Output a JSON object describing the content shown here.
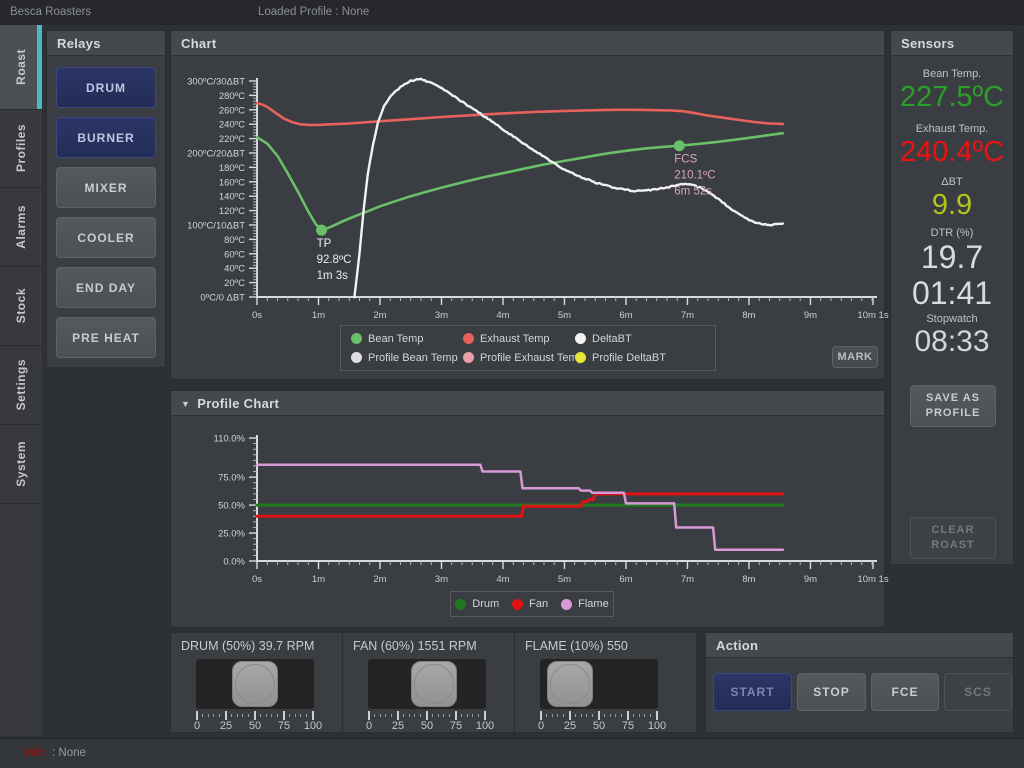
{
  "app": {
    "title": "Besca Roasters",
    "loaded_profile_label": "Loaded Profile : None",
    "status": {
      "label": "Info",
      "separator": ":",
      "value": "None"
    }
  },
  "sidebar": {
    "tabs": [
      {
        "label": "Roast",
        "active": true
      },
      {
        "label": "Profiles",
        "active": false
      },
      {
        "label": "Alarms",
        "active": false
      },
      {
        "label": "Stock",
        "active": false
      },
      {
        "label": "Settings",
        "active": false
      },
      {
        "label": "System",
        "active": false
      }
    ]
  },
  "relays": {
    "title": "Relays",
    "buttons": [
      {
        "label": "DRUM",
        "state": "on"
      },
      {
        "label": "BURNER",
        "state": "on"
      },
      {
        "label": "MIXER",
        "state": "off"
      },
      {
        "label": "COOLER",
        "state": "off"
      },
      {
        "label": "END DAY",
        "state": "off"
      },
      {
        "label": "PRE HEAT",
        "state": "off"
      }
    ]
  },
  "chart_panel": {
    "title": "Chart",
    "mark_button": "MARK",
    "legend": [
      {
        "label": "Bean Temp",
        "color": "#6abf69"
      },
      {
        "label": "Exhaust Temp",
        "color": "#e8625c"
      },
      {
        "label": "DeltaBT",
        "color": "#f2f2f2"
      },
      {
        "label": "Profile Bean Temp",
        "color": "#dedede"
      },
      {
        "label": "Profile Exhaust Temp",
        "color": "#e5a0a8"
      },
      {
        "label": "Profile DeltaBT",
        "color": "#e8e437"
      }
    ]
  },
  "profile_panel": {
    "title": "Profile Chart",
    "collapse_icon": "▼",
    "legend": [
      {
        "label": "Drum",
        "color": "#1f7a1f"
      },
      {
        "label": "Fan",
        "color": "#e01212"
      },
      {
        "label": "Flame",
        "color": "#d79ad7"
      }
    ]
  },
  "sensors": {
    "title": "Sensors",
    "readings": [
      {
        "label": "Bean Temp.",
        "value": "227.5ºC",
        "color": "#2aa02a"
      },
      {
        "label": "Exhaust Temp.",
        "value": "240.4ºC",
        "color": "#ef1111"
      },
      {
        "label": "ΔBT",
        "value": "9.9",
        "color": "#b3c41c"
      }
    ],
    "dtr": {
      "label": "DTR (%)",
      "value": "19.7",
      "time": "01:41"
    },
    "stopwatch": {
      "label": "Stopwatch",
      "value": "08:33"
    },
    "save_button": "SAVE AS PROFILE",
    "clear_button": "CLEAR ROAST"
  },
  "controls": {
    "drum": {
      "label": "DRUM (50%) 39.7 RPM",
      "percent": 50,
      "scale": [
        "0",
        "25",
        "50",
        "75",
        "100"
      ]
    },
    "fan": {
      "label": "FAN (60%) 1551 RPM",
      "percent": 60,
      "scale": [
        "0",
        "25",
        "50",
        "75",
        "100"
      ]
    },
    "flame": {
      "label": "FLAME (10%) 550",
      "percent": 10,
      "scale": [
        "0",
        "25",
        "50",
        "75",
        "100"
      ]
    }
  },
  "action": {
    "title": "Action",
    "buttons": [
      {
        "label": "START",
        "style": "primary-active"
      },
      {
        "label": "STOP",
        "style": "normal"
      },
      {
        "label": "FCE",
        "style": "normal"
      },
      {
        "label": "SCS",
        "style": "disabled"
      }
    ]
  },
  "chart_data": [
    {
      "id": "main-chart",
      "type": "line",
      "title": "Chart",
      "xlabel": "",
      "ylabel": "",
      "x_range": [
        0,
        601
      ],
      "y_range": [
        0,
        300
      ],
      "x_minor_step": 10,
      "y_minor_step": 4,
      "x_ticks": [
        {
          "x": 0,
          "label": "0s"
        },
        {
          "x": 60,
          "label": "1m"
        },
        {
          "x": 120,
          "label": "2m"
        },
        {
          "x": 180,
          "label": "3m"
        },
        {
          "x": 240,
          "label": "4m"
        },
        {
          "x": 300,
          "label": "5m"
        },
        {
          "x": 360,
          "label": "6m"
        },
        {
          "x": 420,
          "label": "7m"
        },
        {
          "x": 480,
          "label": "8m"
        },
        {
          "x": 540,
          "label": "9m"
        },
        {
          "x": 601,
          "label": "10m 1s"
        }
      ],
      "y_ticks": [
        {
          "y": 0,
          "label": "0ºC/0 ΔBT"
        },
        {
          "y": 20,
          "label": "20ºC"
        },
        {
          "y": 40,
          "label": "40ºC"
        },
        {
          "y": 60,
          "label": "60ºC"
        },
        {
          "y": 80,
          "label": "80ºC"
        },
        {
          "y": 100,
          "label": "100ºC/10ΔBT"
        },
        {
          "y": 120,
          "label": "120ºC"
        },
        {
          "y": 140,
          "label": "140ºC"
        },
        {
          "y": 160,
          "label": "160ºC"
        },
        {
          "y": 180,
          "label": "180ºC"
        },
        {
          "y": 200,
          "label": "200ºC/20ΔBT"
        },
        {
          "y": 220,
          "label": "220ºC"
        },
        {
          "y": 240,
          "label": "240ºC"
        },
        {
          "y": 260,
          "label": "260ºC"
        },
        {
          "y": 280,
          "label": "280ºC"
        },
        {
          "y": 300,
          "label": "300ºC/30ΔBT"
        }
      ],
      "series": [
        {
          "name": "Bean Temp",
          "color": "#6abf69",
          "width": 2.6,
          "points": [
            [
              0,
              222
            ],
            [
              10,
              213
            ],
            [
              20,
              196
            ],
            [
              30,
              172
            ],
            [
              40,
              146
            ],
            [
              50,
              119
            ],
            [
              57,
              102
            ],
            [
              63,
              92.8
            ],
            [
              68,
              95
            ],
            [
              75,
              99.5
            ],
            [
              85,
              106
            ],
            [
              95,
              112
            ],
            [
              108,
              119
            ],
            [
              120,
              126
            ],
            [
              135,
              133
            ],
            [
              150,
              140
            ],
            [
              165,
              146
            ],
            [
              180,
              152
            ],
            [
              200,
              159
            ],
            [
              220,
              166
            ],
            [
              240,
              172
            ],
            [
              260,
              178
            ],
            [
              280,
              184
            ],
            [
              300,
              189
            ],
            [
              320,
              194
            ],
            [
              340,
              199
            ],
            [
              360,
              203
            ],
            [
              380,
              206.5
            ],
            [
              396,
              208.5
            ],
            [
              412,
              210.1
            ],
            [
              430,
              212.5
            ],
            [
              450,
              215.5
            ],
            [
              475,
              220
            ],
            [
              495,
              224
            ],
            [
              513,
              227.5
            ]
          ]
        },
        {
          "name": "Exhaust Temp",
          "color": "#e8625c",
          "width": 2.6,
          "points": [
            [
              0,
              269
            ],
            [
              5,
              267.5
            ],
            [
              10,
              264
            ],
            [
              18,
              256
            ],
            [
              26,
              248
            ],
            [
              34,
              243
            ],
            [
              42,
              240
            ],
            [
              50,
              239
            ],
            [
              60,
              239
            ],
            [
              75,
              240
            ],
            [
              90,
              241
            ],
            [
              110,
              243
            ],
            [
              130,
              245
            ],
            [
              155,
              247.5
            ],
            [
              180,
              250
            ],
            [
              210,
              252.5
            ],
            [
              240,
              255
            ],
            [
              270,
              257
            ],
            [
              300,
              258.5
            ],
            [
              330,
              259.5
            ],
            [
              350,
              260
            ],
            [
              370,
              260
            ],
            [
              390,
              259.5
            ],
            [
              405,
              259
            ],
            [
              415,
              258
            ],
            [
              425,
              256
            ],
            [
              440,
              252
            ],
            [
              455,
              249
            ],
            [
              470,
              246
            ],
            [
              485,
              243
            ],
            [
              500,
              241
            ],
            [
              513,
              240.4
            ]
          ]
        },
        {
          "name": "DeltaBT",
          "color": "#f2f2f2",
          "width": 2.4,
          "jitter": true,
          "points": [
            [
              95,
              0
            ],
            [
              100,
              60
            ],
            [
              104,
              120
            ],
            [
              108,
              170
            ],
            [
              113,
              210
            ],
            [
              118,
              242
            ],
            [
              124,
              266
            ],
            [
              130,
              278
            ],
            [
              140,
              292
            ],
            [
              150,
              300
            ],
            [
              158,
              303
            ],
            [
              165,
              300
            ],
            [
              175,
              294
            ],
            [
              185,
              286
            ],
            [
              195,
              276
            ],
            [
              210,
              262
            ],
            [
              225,
              248
            ],
            [
              240,
              233
            ],
            [
              255,
              218
            ],
            [
              270,
              204
            ],
            [
              285,
              190
            ],
            [
              300,
              177
            ],
            [
              315,
              167
            ],
            [
              330,
              159
            ],
            [
              345,
              153
            ],
            [
              360,
              149
            ],
            [
              370,
              147
            ],
            [
              380,
              148
            ],
            [
              390,
              150
            ],
            [
              400,
              152
            ],
            [
              408,
              155
            ],
            [
              416,
              157
            ],
            [
              424,
              156
            ],
            [
              432,
              152
            ],
            [
              440,
              146
            ],
            [
              450,
              136
            ],
            [
              460,
              125
            ],
            [
              470,
              115
            ],
            [
              480,
              107
            ],
            [
              490,
              102
            ],
            [
              500,
              100
            ],
            [
              508,
              101
            ],
            [
              513,
              102
            ]
          ]
        }
      ],
      "markers": [
        {
          "name": "TP",
          "lines": [
            "TP",
            "92.8ºC",
            "1m 3s"
          ],
          "x": 63,
          "y": 92.8,
          "dot_color": "#6abf69",
          "text_color": "#ececec"
        },
        {
          "name": "FCS",
          "lines": [
            "FCS",
            "210.1ºC",
            "6m 52s"
          ],
          "x": 412,
          "y": 210.1,
          "dot_color": "#6abf69",
          "text_color": "#d9a4bd"
        }
      ]
    },
    {
      "id": "profile-chart",
      "type": "step-line",
      "title": "Profile Chart",
      "xlabel": "",
      "ylabel": "",
      "x_range": [
        0,
        601
      ],
      "y_range": [
        0,
        110
      ],
      "x_minor_step": 10,
      "y_minor_step": 5,
      "x_ticks": [
        {
          "x": 0,
          "label": "0s"
        },
        {
          "x": 60,
          "label": "1m"
        },
        {
          "x": 120,
          "label": "2m"
        },
        {
          "x": 180,
          "label": "3m"
        },
        {
          "x": 240,
          "label": "4m"
        },
        {
          "x": 300,
          "label": "5m"
        },
        {
          "x": 360,
          "label": "6m"
        },
        {
          "x": 420,
          "label": "7m"
        },
        {
          "x": 480,
          "label": "8m"
        },
        {
          "x": 540,
          "label": "9m"
        },
        {
          "x": 601,
          "label": "10m 1s"
        }
      ],
      "y_ticks": [
        {
          "y": 0,
          "label": "0.0%"
        },
        {
          "y": 25,
          "label": "25.0%"
        },
        {
          "y": 50,
          "label": "50.0%"
        },
        {
          "y": 75,
          "label": "75.0%"
        },
        {
          "y": 110,
          "label": "110.0%"
        }
      ],
      "series": [
        {
          "name": "Drum",
          "color": "#1f7a1f",
          "width": 3,
          "points": [
            [
              0,
              50
            ],
            [
              513,
              50
            ]
          ]
        },
        {
          "name": "Fan",
          "color": "#e01212",
          "width": 3,
          "points": [
            [
              0,
              40
            ],
            [
              258,
              40
            ],
            [
              260,
              49
            ],
            [
              316,
              49
            ],
            [
              318,
              53
            ],
            [
              322,
              53
            ],
            [
              324,
              55
            ],
            [
              328,
              55
            ],
            [
              330,
              60
            ],
            [
              513,
              60
            ]
          ]
        },
        {
          "name": "Flame",
          "color": "#d79ad7",
          "width": 2.5,
          "points": [
            [
              0,
              86
            ],
            [
              218,
              86
            ],
            [
              220,
              80
            ],
            [
              257,
              80
            ],
            [
              259,
              65
            ],
            [
              314,
              65
            ],
            [
              316,
              63
            ],
            [
              325,
              63
            ],
            [
              327,
              61
            ],
            [
              358,
              61
            ],
            [
              360,
              51.5
            ],
            [
              407,
              51.5
            ],
            [
              409,
              30
            ],
            [
              445,
              30
            ],
            [
              447,
              10
            ],
            [
              513,
              10
            ]
          ]
        }
      ]
    }
  ]
}
